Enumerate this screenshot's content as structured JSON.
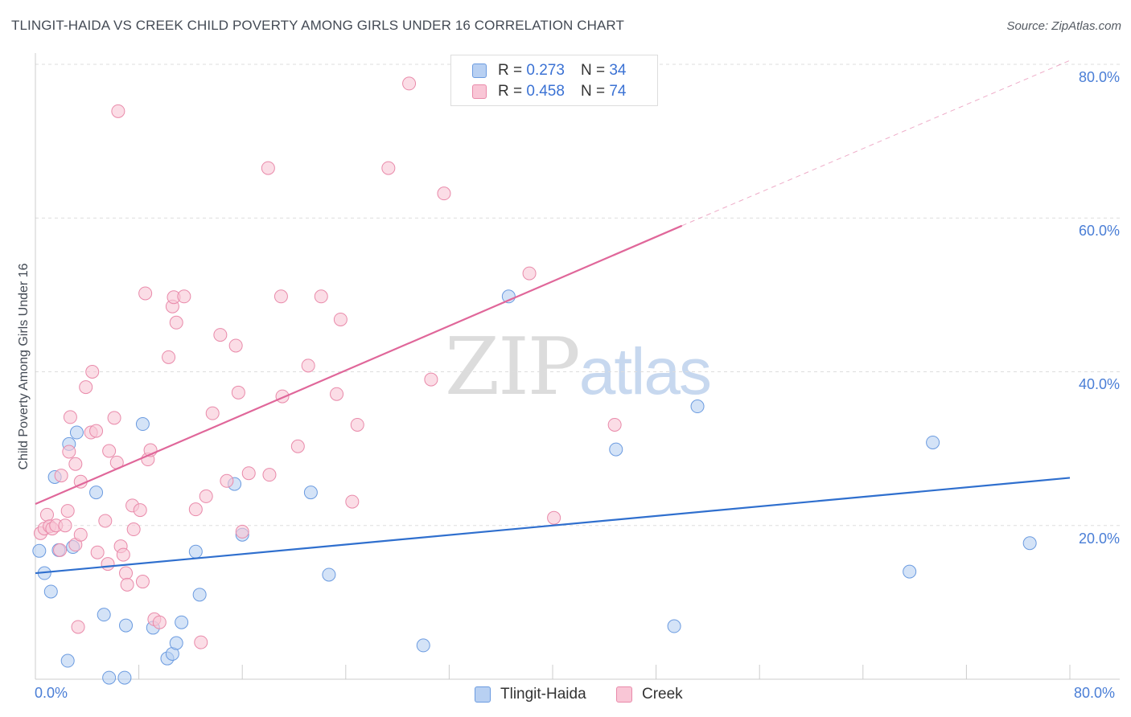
{
  "title": "TLINGIT-HAIDA VS CREEK CHILD POVERTY AMONG GIRLS UNDER 16 CORRELATION CHART",
  "source": "Source: ZipAtlas.com",
  "watermark": {
    "zip": "ZIP",
    "atlas": "atlas"
  },
  "legend": {
    "rows": [
      {
        "r_label": "R = ",
        "r_value": "0.273",
        "n_label": "N = ",
        "n_value": "34"
      },
      {
        "r_label": "R = ",
        "r_value": "0.458",
        "n_label": "N = ",
        "n_value": "74"
      }
    ]
  },
  "colors": {
    "tlingit_fill": "#b8d0f2",
    "tlingit_stroke": "#6b9be0",
    "tlingit_line": "#2f6fce",
    "creek_fill": "#f9c6d6",
    "creek_stroke": "#e98aaa",
    "creek_line": "#e0679a",
    "grid": "#dddddd",
    "tick_text": "#4a7ed6"
  },
  "chart_data": {
    "type": "scatter",
    "title": "TLINGIT-HAIDA VS CREEK CHILD POVERTY AMONG GIRLS UNDER 16 CORRELATION CHART",
    "xlabel": "",
    "ylabel": "Child Poverty Among Girls Under 16",
    "xlim": [
      0,
      80
    ],
    "ylim": [
      0,
      80
    ],
    "x_ticks": [
      "0.0%",
      "80.0%"
    ],
    "y_ticks": [
      "20.0%",
      "40.0%",
      "60.0%",
      "80.0%"
    ],
    "grid": true,
    "legend_position": "top-center",
    "series": [
      {
        "name": "Tlingit-Haida",
        "r": 0.273,
        "n": 34,
        "trend": {
          "x0": 0,
          "y0": 13.8,
          "x1": 80,
          "y1": 26.2
        },
        "points": [
          [
            0.3,
            16.7
          ],
          [
            0.7,
            13.8
          ],
          [
            1.2,
            11.4
          ],
          [
            1.5,
            26.3
          ],
          [
            1.8,
            16.8
          ],
          [
            2.5,
            2.4
          ],
          [
            2.6,
            30.6
          ],
          [
            2.9,
            17.2
          ],
          [
            3.2,
            32.1
          ],
          [
            4.7,
            24.3
          ],
          [
            5.3,
            8.4
          ],
          [
            5.7,
            0.2
          ],
          [
            6.9,
            0.2
          ],
          [
            7.0,
            7.0
          ],
          [
            8.3,
            33.2
          ],
          [
            9.1,
            6.7
          ],
          [
            10.2,
            2.7
          ],
          [
            10.6,
            3.3
          ],
          [
            10.9,
            4.7
          ],
          [
            11.3,
            7.4
          ],
          [
            12.4,
            16.6
          ],
          [
            12.7,
            11.0
          ],
          [
            15.4,
            25.4
          ],
          [
            16.0,
            18.8
          ],
          [
            21.3,
            24.3
          ],
          [
            22.7,
            13.6
          ],
          [
            30.0,
            4.4
          ],
          [
            36.6,
            49.8
          ],
          [
            44.9,
            29.9
          ],
          [
            49.4,
            6.9
          ],
          [
            51.2,
            35.5
          ],
          [
            67.6,
            14.0
          ],
          [
            69.4,
            30.8
          ],
          [
            76.9,
            17.7
          ]
        ]
      },
      {
        "name": "Creek",
        "r": 0.458,
        "n": 74,
        "trend": {
          "x0": 0,
          "y0": 22.8,
          "x1": 50,
          "y1": 59.0
        },
        "trend_extension": {
          "x0": 50,
          "y0": 59.0,
          "x1": 80,
          "y1": 80.5
        },
        "points": [
          [
            0.4,
            19.0
          ],
          [
            0.7,
            19.6
          ],
          [
            0.9,
            21.4
          ],
          [
            1.1,
            19.9
          ],
          [
            1.3,
            19.6
          ],
          [
            1.6,
            20.0
          ],
          [
            1.9,
            16.8
          ],
          [
            2.0,
            26.5
          ],
          [
            2.3,
            20.0
          ],
          [
            2.5,
            21.9
          ],
          [
            2.6,
            29.6
          ],
          [
            2.7,
            34.1
          ],
          [
            3.1,
            17.5
          ],
          [
            3.1,
            28.0
          ],
          [
            3.3,
            6.8
          ],
          [
            3.5,
            25.7
          ],
          [
            3.5,
            18.8
          ],
          [
            3.9,
            38.0
          ],
          [
            4.3,
            32.1
          ],
          [
            4.4,
            40.0
          ],
          [
            4.7,
            32.3
          ],
          [
            4.8,
            16.5
          ],
          [
            5.4,
            20.6
          ],
          [
            5.6,
            15.0
          ],
          [
            5.7,
            29.7
          ],
          [
            6.1,
            34.0
          ],
          [
            6.3,
            28.2
          ],
          [
            6.4,
            73.9
          ],
          [
            6.6,
            17.3
          ],
          [
            6.8,
            16.2
          ],
          [
            7.0,
            13.8
          ],
          [
            7.1,
            12.3
          ],
          [
            7.5,
            22.6
          ],
          [
            7.6,
            19.5
          ],
          [
            8.1,
            22.0
          ],
          [
            8.3,
            12.7
          ],
          [
            8.5,
            50.2
          ],
          [
            8.7,
            28.6
          ],
          [
            8.9,
            29.8
          ],
          [
            9.2,
            7.8
          ],
          [
            9.6,
            7.4
          ],
          [
            10.3,
            41.9
          ],
          [
            10.6,
            48.5
          ],
          [
            10.7,
            49.7
          ],
          [
            10.9,
            46.4
          ],
          [
            11.5,
            49.8
          ],
          [
            12.4,
            22.1
          ],
          [
            12.8,
            4.8
          ],
          [
            13.2,
            23.8
          ],
          [
            13.7,
            34.6
          ],
          [
            14.3,
            44.8
          ],
          [
            14.8,
            25.8
          ],
          [
            15.5,
            43.4
          ],
          [
            15.7,
            37.3
          ],
          [
            16.0,
            19.2
          ],
          [
            16.5,
            26.8
          ],
          [
            18.0,
            66.5
          ],
          [
            18.1,
            26.6
          ],
          [
            19.0,
            49.8
          ],
          [
            19.1,
            36.8
          ],
          [
            20.3,
            30.3
          ],
          [
            21.1,
            40.8
          ],
          [
            22.1,
            49.8
          ],
          [
            23.3,
            37.1
          ],
          [
            23.6,
            46.8
          ],
          [
            24.5,
            23.1
          ],
          [
            24.9,
            33.1
          ],
          [
            27.3,
            66.5
          ],
          [
            28.9,
            77.5
          ],
          [
            30.6,
            39.0
          ],
          [
            31.6,
            63.2
          ],
          [
            38.2,
            52.8
          ],
          [
            40.1,
            21.0
          ],
          [
            44.8,
            33.1
          ]
        ]
      }
    ]
  }
}
